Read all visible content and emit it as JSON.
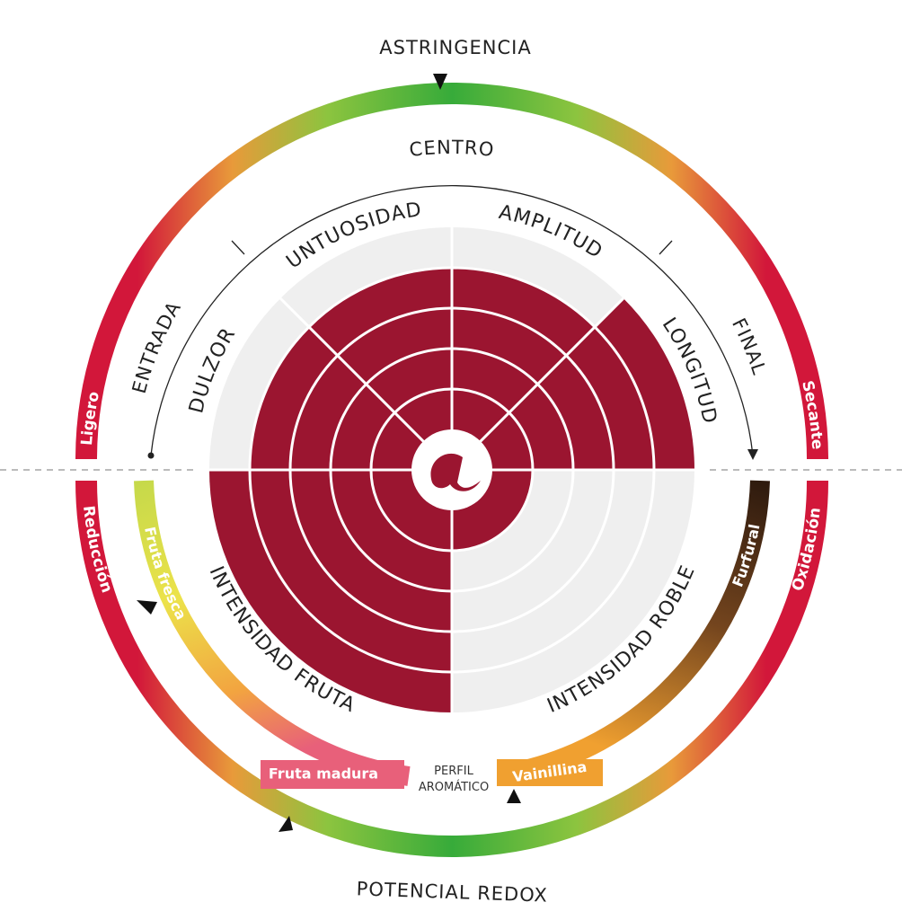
{
  "top_label": "ASTRINGENCIA",
  "bottom_label": "POTENCIAL REDOX",
  "ring_labels": {
    "top_left": "Ligero",
    "top_right": "Secante",
    "bottom_left": "Reducción",
    "bottom_right": "Oxidación"
  },
  "phases": [
    "ENTRADA",
    "CENTRO",
    "FINAL"
  ],
  "segments": [
    {
      "label": "DULZOR",
      "level": 4
    },
    {
      "label": "UNTUOSIDAD",
      "level": 4
    },
    {
      "label": "AMPLITUD",
      "level": 4
    },
    {
      "label": "LONGITUD",
      "level": 5
    },
    {
      "label": "INTENSIDAD FRUTA",
      "level": 5
    },
    {
      "label": "INTENSIDAD ROBLE",
      "level": 1
    }
  ],
  "aroma": {
    "fruit": [
      "Fruta fresca",
      "Fruta madura"
    ],
    "oak": [
      "Furfural",
      "Vainillina"
    ],
    "title": [
      "PERFIL",
      "AROMÁTICO"
    ]
  }
}
